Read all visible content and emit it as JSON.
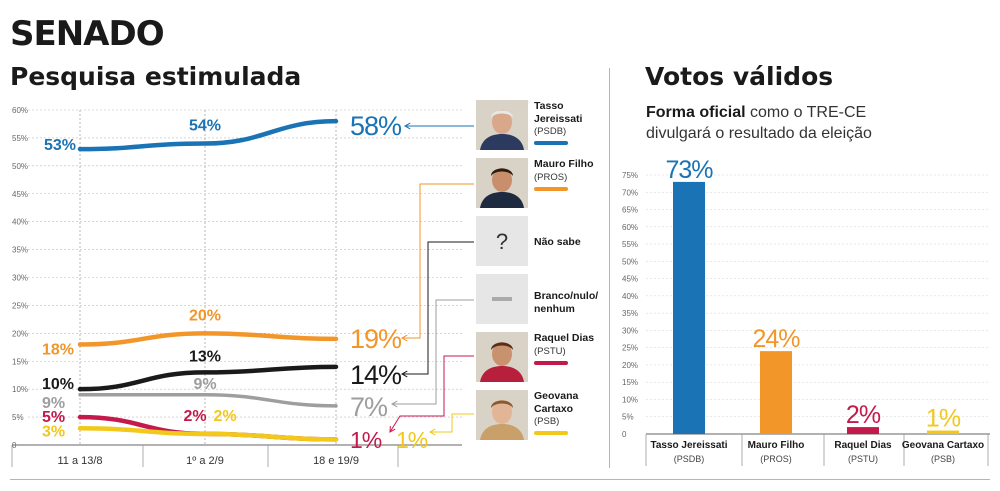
{
  "header": {
    "title": "SENADO",
    "left_title": "Pesquisa estimulada",
    "right_title": "Votos válidos",
    "subtitle_bold": "Forma oficial",
    "subtitle_rest": " como o TRE-CE divulgará o resultado da eleição"
  },
  "legend": [
    {
      "name": "Tasso Jereissati",
      "party": "(PSDB)",
      "color": "#1a73b4",
      "icon": "portrait-tasso"
    },
    {
      "name": "Mauro Filho",
      "party": "(PROS)",
      "color": "#f2962a",
      "icon": "portrait-mauro"
    },
    {
      "name": "Não sabe",
      "party": "",
      "color": "#1a1a1a",
      "icon": "question-mark-icon",
      "glyph": "?"
    },
    {
      "name": "Branco/nulo/ nenhum",
      "party": "",
      "color": "#9e9e9e",
      "icon": "dash-icon"
    },
    {
      "name": "Raquel Dias",
      "party": "(PSTU)",
      "color": "#c4194b",
      "icon": "portrait-raquel"
    },
    {
      "name": "Geovana Cartaxo",
      "party": "(PSB)",
      "color": "#f2c81a",
      "icon": "portrait-geovana"
    }
  ],
  "chart_data": [
    {
      "type": "line",
      "title": "Pesquisa estimulada",
      "categories": [
        "11 a 13/8",
        "1º a 2/9",
        "18 e 19/9"
      ],
      "y_ticks": [
        "0",
        "5%",
        "10%",
        "15%",
        "20%",
        "25%",
        "30%",
        "35%",
        "40%",
        "45%",
        "50%",
        "55%",
        "60%"
      ],
      "ylim": [
        0,
        60
      ],
      "series": [
        {
          "name": "Tasso Jereissati",
          "color": "#1a73b4",
          "values": [
            53,
            54,
            58
          ],
          "labels": [
            "53%",
            "54%",
            "58%"
          ]
        },
        {
          "name": "Mauro Filho",
          "color": "#f2962a",
          "values": [
            18,
            20,
            19
          ],
          "labels": [
            "18%",
            "20%",
            "19%"
          ]
        },
        {
          "name": "Não sabe",
          "color": "#1a1a1a",
          "values": [
            10,
            13,
            14
          ],
          "labels": [
            "10%",
            "13%",
            "14%"
          ]
        },
        {
          "name": "Branco/nulo/ nenhum",
          "color": "#9e9e9e",
          "values": [
            9,
            9,
            7
          ],
          "labels": [
            "9%",
            "9%",
            "7%"
          ]
        },
        {
          "name": "Raquel Dias",
          "color": "#c4194b",
          "values": [
            5,
            2,
            1
          ],
          "labels": [
            "5%",
            "2%",
            "1%"
          ]
        },
        {
          "name": "Geovana Cartaxo",
          "color": "#f2c81a",
          "values": [
            3,
            2,
            1
          ],
          "labels": [
            "3%",
            "2%",
            "1%"
          ]
        }
      ]
    },
    {
      "type": "bar",
      "title": "Votos válidos",
      "categories": [
        "Tasso Jereissati",
        "Mauro Filho",
        "Raquel Dias",
        "Geovana Cartaxo"
      ],
      "parties": [
        "(PSDB)",
        "(PROS)",
        "(PSTU)",
        "(PSB)"
      ],
      "values": [
        73,
        24,
        2,
        1
      ],
      "labels": [
        "73%",
        "24%",
        "2%",
        "1%"
      ],
      "colors": [
        "#1a73b4",
        "#f2962a",
        "#c4194b",
        "#f2c81a"
      ],
      "y_ticks": [
        "0",
        "5%",
        "10%",
        "15%",
        "20%",
        "25%",
        "30%",
        "35%",
        "40%",
        "45%",
        "50%",
        "55%",
        "60%",
        "65%",
        "70%",
        "75%"
      ],
      "ylim": [
        0,
        75
      ]
    }
  ]
}
